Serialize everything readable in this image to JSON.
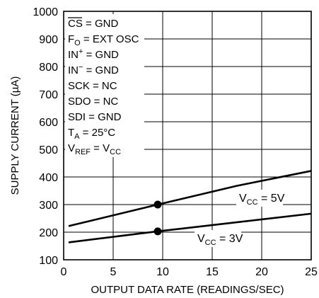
{
  "chart_data": {
    "type": "line",
    "xlabel": "OUTPUT DATA RATE (READINGS/SEC)",
    "ylabel": "SUPPLY CURRENT (µA)",
    "xlim": [
      0,
      25
    ],
    "ylim": [
      100,
      1000
    ],
    "xticks": [
      0,
      5,
      10,
      15,
      20,
      25
    ],
    "yticks": [
      100,
      200,
      300,
      400,
      500,
      600,
      700,
      800,
      900,
      1000
    ],
    "grid": true,
    "series": [
      {
        "label_main": "V",
        "label_sub": "CC",
        "label_tail": " = 5V",
        "x": [
          0.5,
          9.5,
          17.5,
          25
        ],
        "y": [
          222,
          300,
          368,
          422
        ],
        "marker": {
          "x": 9.5,
          "y": 300
        }
      },
      {
        "label_main": "V",
        "label_sub": "CC",
        "label_tail": " = 3V",
        "x": [
          0.5,
          9.5,
          25
        ],
        "y": [
          163,
          203,
          267
        ],
        "marker": {
          "x": 9.5,
          "y": 203
        }
      }
    ],
    "conditions": [
      {
        "main": "CS",
        "overline": true,
        "sub": "",
        "sup": "",
        "tail": " = GND"
      },
      {
        "main": "F",
        "overline": false,
        "sub": "O",
        "sup": "",
        "tail": " = EXT OSC"
      },
      {
        "main": "IN",
        "overline": false,
        "sub": "",
        "sup": "+",
        "tail": " = GND"
      },
      {
        "main": "IN",
        "overline": false,
        "sub": "",
        "sup": "−",
        "tail": " = GND"
      },
      {
        "main": "SCK = NC",
        "overline": false,
        "sub": "",
        "sup": "",
        "tail": ""
      },
      {
        "main": "SDO = NC",
        "overline": false,
        "sub": "",
        "sup": "",
        "tail": ""
      },
      {
        "main": "SDI = GND",
        "overline": false,
        "sub": "",
        "sup": "",
        "tail": ""
      },
      {
        "main": "T",
        "overline": false,
        "sub": "A",
        "sup": "",
        "tail": " = 25°C"
      },
      {
        "main": "V",
        "overline": false,
        "sub": "REF",
        "sup": "",
        "tail": " = V",
        "sub2": "CC"
      }
    ]
  }
}
